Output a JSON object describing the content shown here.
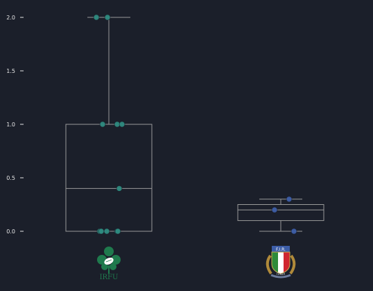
{
  "chart_data": {
    "type": "box",
    "categories": [
      "Ireland",
      "Italy"
    ],
    "ylim": [
      -0.05,
      2.05
    ],
    "y_ticks": [
      {
        "value": 0.0,
        "label": "0.0"
      },
      {
        "value": 0.5,
        "label": "0.5"
      },
      {
        "value": 1.0,
        "label": "1.0"
      },
      {
        "value": 1.5,
        "label": "1.5"
      },
      {
        "value": 2.0,
        "label": "2.0"
      }
    ],
    "grid": false,
    "boxes": [
      {
        "category": "Ireland",
        "color": "#2e8b80",
        "whisker_low": 0.0,
        "q1": 0.0,
        "median": 0.4,
        "q3": 1.0,
        "whisker_high": 2.0,
        "points": [
          {
            "y": 2.0,
            "jitter": -0.18
          },
          {
            "y": 2.0,
            "jitter": -0.02
          },
          {
            "y": 1.0,
            "jitter": -0.09
          },
          {
            "y": 1.0,
            "jitter": 0.12
          },
          {
            "y": 1.0,
            "jitter": 0.19
          },
          {
            "y": 0.4,
            "jitter": 0.15
          },
          {
            "y": 0.0,
            "jitter": -0.13
          },
          {
            "y": 0.0,
            "jitter": -0.11
          },
          {
            "y": 0.0,
            "jitter": -0.03
          },
          {
            "y": 0.0,
            "jitter": 0.12
          },
          {
            "y": 0.0,
            "jitter": 0.13
          }
        ]
      },
      {
        "category": "Italy",
        "color": "#3d5ea8",
        "whisker_low": 0.0,
        "q1": 0.1,
        "median": 0.2,
        "q3": 0.25,
        "whisker_high": 0.3,
        "points": [
          {
            "y": 0.3,
            "jitter": 0.12
          },
          {
            "y": 0.2,
            "jitter": -0.09
          },
          {
            "y": 0.0,
            "jitter": 0.19
          }
        ]
      }
    ]
  },
  "logos": {
    "ireland": {
      "icon": "shamrock-rugby-ball-icon",
      "text": "IRFU",
      "color": "#1f7a4d"
    },
    "italy": {
      "icon": "shield-flag-icon",
      "text_top": "F.I.R.",
      "text_bottom": "ITALIA",
      "colors": [
        "#2e8b3a",
        "#ffffff",
        "#d0262f"
      ]
    }
  },
  "style": {
    "axis_color": "#e6e6e6",
    "box_edge_color": "#9a9a9a"
  }
}
